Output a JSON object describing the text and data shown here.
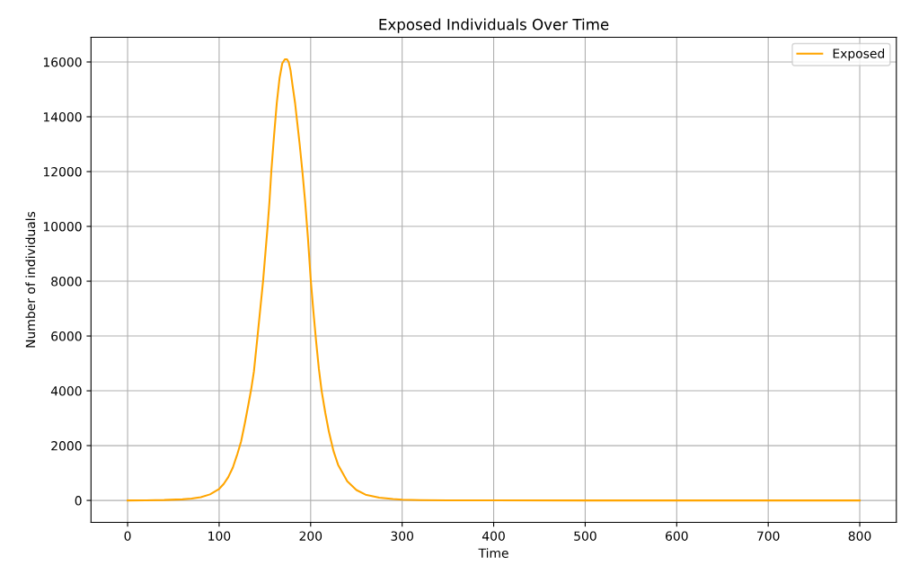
{
  "chart_data": {
    "type": "line",
    "title": "Exposed Individuals Over Time",
    "xlabel": "Time",
    "ylabel": "Number of individuals",
    "series": [
      {
        "name": "Exposed",
        "color": "#ffa500",
        "x": [
          0,
          20,
          40,
          60,
          70,
          80,
          90,
          100,
          105,
          110,
          115,
          120,
          124,
          128,
          132,
          135,
          138,
          142,
          145,
          148,
          151,
          153,
          155,
          157,
          160,
          163,
          166,
          169,
          172,
          174,
          176,
          178,
          180,
          183,
          185,
          188,
          191,
          194,
          197,
          200,
          203,
          206,
          209,
          212,
          216,
          220,
          225,
          230,
          240,
          250,
          260,
          275,
          290,
          300,
          320,
          350,
          400,
          500,
          600,
          700,
          800
        ],
        "values": [
          0,
          5,
          15,
          40,
          70,
          120,
          220,
          420,
          600,
          850,
          1200,
          1700,
          2150,
          2800,
          3500,
          4050,
          4700,
          6000,
          7000,
          8000,
          9200,
          10000,
          10900,
          12000,
          13300,
          14500,
          15400,
          15950,
          16100,
          16100,
          16000,
          15700,
          15200,
          14500,
          13900,
          13000,
          12000,
          10900,
          9600,
          8100,
          6900,
          5800,
          4800,
          4000,
          3200,
          2500,
          1800,
          1300,
          700,
          380,
          210,
          100,
          50,
          30,
          12,
          4,
          1,
          0,
          0,
          0,
          0
        ]
      }
    ],
    "xlim": [
      -40,
      840
    ],
    "ylim": [
      -800,
      16900
    ],
    "xticks": [
      0,
      100,
      200,
      300,
      400,
      500,
      600,
      700,
      800
    ],
    "yticks": [
      0,
      2000,
      4000,
      6000,
      8000,
      10000,
      12000,
      14000,
      16000
    ],
    "grid": true,
    "legend": "top right"
  }
}
